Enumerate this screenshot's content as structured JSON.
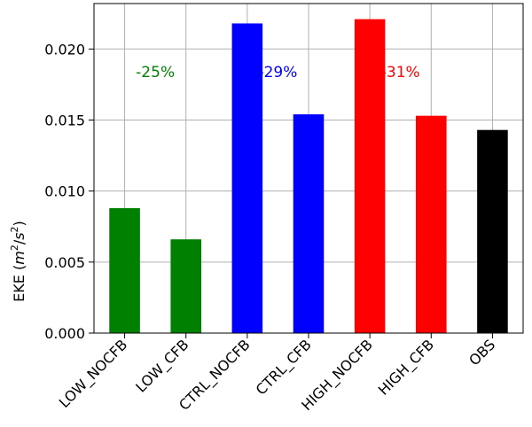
{
  "chart_data": {
    "type": "bar",
    "title": "",
    "xlabel": "",
    "ylabel": "EKE (m2/s2)",
    "ylabel_parts": {
      "prefix": "EKE (",
      "m": "m",
      "m_exp": "2",
      "slash": "/",
      "s": "s",
      "s_exp": "2",
      "suffix": ")"
    },
    "ylim": [
      0,
      0.0232
    ],
    "yticks": [
      0.0,
      0.005,
      0.01,
      0.015,
      0.02
    ],
    "ytick_labels": [
      "0.000",
      "0.005",
      "0.010",
      "0.015",
      "0.020"
    ],
    "grid": true,
    "categories": [
      "LOW_NOCFB",
      "LOW_CFB",
      "CTRL_NOCFB",
      "CTRL_CFB",
      "HIGH_NOCFB",
      "HIGH_CFB",
      "OBS"
    ],
    "values": [
      0.0088,
      0.0066,
      0.0218,
      0.0154,
      0.0221,
      0.0153,
      0.0143
    ],
    "bar_colors": [
      "#008000",
      "#008000",
      "#0000ff",
      "#0000ff",
      "#ff0000",
      "#ff0000",
      "#000000"
    ],
    "annotations": [
      {
        "text": "-25%",
        "between": [
          0,
          1
        ],
        "y": 0.0184,
        "color": "#008000"
      },
      {
        "text": "-29%",
        "between": [
          2,
          3
        ],
        "y": 0.0184,
        "color": "#0000ff"
      },
      {
        "text": "-31%",
        "between": [
          4,
          5
        ],
        "y": 0.0184,
        "color": "#ff0000"
      }
    ]
  }
}
